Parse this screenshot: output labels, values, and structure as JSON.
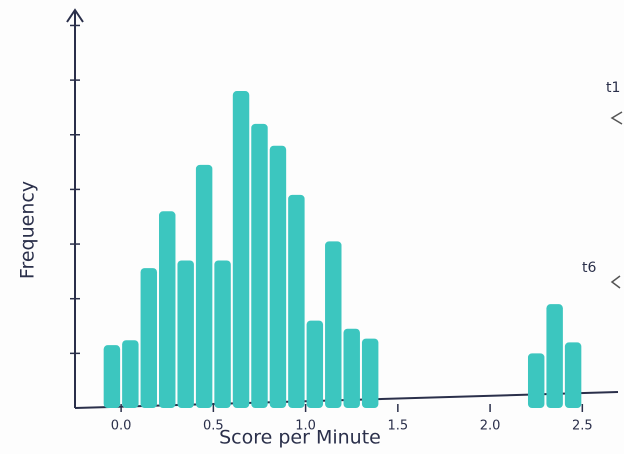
{
  "chart_data": {
    "type": "histogram",
    "x_label": "Score per Minute",
    "y_label": "Frequency",
    "bins": [
      -0.1,
      0.0,
      0.1,
      0.2,
      0.3,
      0.4,
      0.5,
      0.6,
      0.7,
      0.8,
      0.9,
      1.0,
      1.1,
      1.2,
      1.3,
      1.4,
      1.5,
      1.6,
      1.7,
      1.8,
      1.9,
      2.0,
      2.1,
      2.2,
      2.3,
      2.4,
      2.5
    ],
    "values": [
      1.15,
      1.24,
      2.56,
      3.6,
      2.7,
      4.45,
      2.7,
      5.8,
      5.2,
      4.8,
      3.9,
      1.6,
      3.05,
      1.45,
      1.27,
      0,
      0,
      0,
      0,
      0,
      0,
      0,
      0,
      1.0,
      1.9,
      1.2
    ],
    "color": "#3cc6bf",
    "xlim": [
      -0.25,
      2.65
    ],
    "xticks": [
      {
        "value": 0,
        "label": "0.0"
      },
      0.5,
      {
        "value": 1,
        "label": "1.0"
      },
      1.5,
      {
        "value": 2,
        "label": "2.0"
      },
      2.5
    ],
    "ylim": [
      0,
      7.1
    ],
    "yticks": [
      1,
      2,
      3,
      4,
      5,
      6,
      7
    ],
    "annotations": [
      "t1",
      "t6"
    ]
  }
}
